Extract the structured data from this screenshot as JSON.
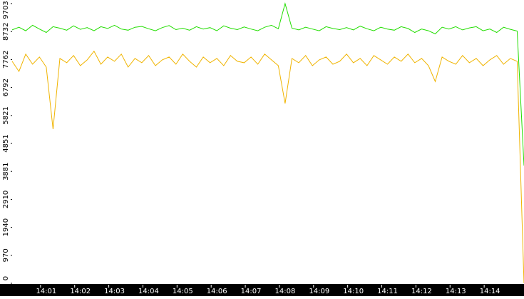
{
  "chart_data": {
    "type": "line",
    "categories": [
      null,
      null,
      null,
      null,
      null,
      "14:01",
      null,
      null,
      null,
      null,
      "14:02",
      null,
      null,
      null,
      null,
      "14:03",
      null,
      null,
      null,
      null,
      "14:04",
      null,
      null,
      null,
      null,
      "14:05",
      null,
      null,
      null,
      null,
      "14:06",
      null,
      null,
      null,
      null,
      "14:07",
      null,
      null,
      null,
      null,
      "14:08",
      null,
      null,
      null,
      null,
      "14:09",
      null,
      null,
      null,
      null,
      "14:10",
      null,
      null,
      null,
      null,
      "14:11",
      null,
      null,
      null,
      null,
      "14:12",
      null,
      null,
      null,
      null,
      "14:13",
      null,
      null,
      null,
      null,
      "14:14",
      null,
      null,
      null,
      null,
      null
    ],
    "series": [
      {
        "color": "#22dd00",
        "values": [
          8790,
          8880,
          8760,
          8950,
          8820,
          8700,
          8900,
          8850,
          8780,
          8930,
          8810,
          8870,
          8760,
          8900,
          8840,
          8950,
          8820,
          8780,
          8880,
          8910,
          8830,
          8760,
          8870,
          8940,
          8800,
          8850,
          8780,
          8900,
          8820,
          8870,
          8760,
          8930,
          8850,
          8800,
          8890,
          8820,
          8760,
          8880,
          8950,
          8830,
          9703,
          8850,
          8790,
          8880,
          8820,
          8760,
          8900,
          8840,
          8800,
          8870,
          8790,
          8920,
          8830,
          8760,
          8880,
          8820,
          8780,
          8900,
          8840,
          8700,
          8820,
          8760,
          8650,
          8880,
          8820,
          8900,
          8790,
          8860,
          8900,
          8760,
          8820,
          8700,
          8880,
          8810,
          8750,
          4084
        ]
      },
      {
        "color": "#f0b400",
        "values": [
          7700,
          7350,
          7950,
          7600,
          7850,
          7500,
          5346,
          7800,
          7650,
          7900,
          7550,
          7750,
          8050,
          7600,
          7850,
          7700,
          7950,
          7500,
          7800,
          7650,
          7900,
          7550,
          7750,
          7850,
          7600,
          7950,
          7700,
          7500,
          7850,
          7650,
          7800,
          7550,
          7900,
          7700,
          7650,
          7850,
          7600,
          7950,
          7750,
          7550,
          6237,
          7800,
          7650,
          7900,
          7550,
          7750,
          7850,
          7600,
          7700,
          7950,
          7650,
          7800,
          7550,
          7900,
          7750,
          7600,
          7850,
          7700,
          7950,
          7650,
          7800,
          7550,
          7000,
          7850,
          7700,
          7600,
          7900,
          7650,
          7800,
          7550,
          7750,
          7900,
          7600,
          7800,
          7700,
          0
        ]
      }
    ],
    "ylim": [
      0,
      9703
    ],
    "yticks": [
      0,
      970,
      1940,
      2910,
      3881,
      4851,
      5821,
      6792,
      7762,
      8732,
      9703
    ]
  }
}
